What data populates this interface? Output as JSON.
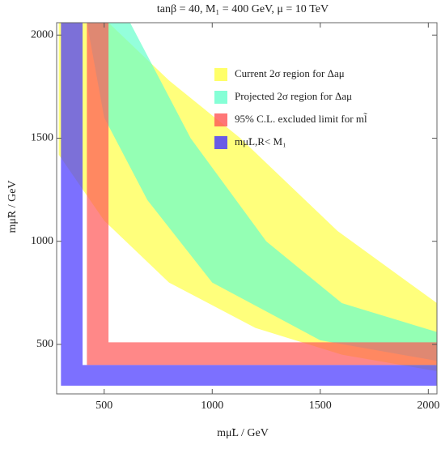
{
  "chart_data": {
    "type": "region",
    "title": "tanβ = 40, M₁ = 400 GeV, μ = 10 TeV",
    "x_label": "mμ̃L / GeV",
    "y_label": "mμ̃R / GeV",
    "xlim": [
      280,
      2040
    ],
    "ylim": [
      260,
      2060
    ],
    "xticks": [
      500,
      1000,
      1500,
      2000
    ],
    "yticks": [
      500,
      1000,
      1500,
      2000
    ],
    "series": [
      {
        "name": "Current 2σ region for Δaμ",
        "color": "#ffff44",
        "x": [
          520,
          800,
          1130,
          1580,
          2040,
          2040,
          1600,
          1200,
          800,
          500,
          290,
          290
        ],
        "y": [
          2060,
          1780,
          1500,
          1050,
          700,
          370,
          450,
          580,
          800,
          1100,
          1420,
          2060
        ]
      },
      {
        "name": "Projected 2σ region for Δaμ",
        "color": "#66ffcc",
        "x": [
          620,
          900,
          1250,
          1600,
          2040,
          2040,
          1500,
          1000,
          700,
          500,
          420
        ],
        "y": [
          2060,
          1500,
          1000,
          700,
          560,
          420,
          520,
          800,
          1200,
          1600,
          2060
        ]
      },
      {
        "name": "95% C.L. excluded limit for ml̃",
        "color": "#ff5555",
        "x": [
          420,
          520,
          520,
          2040,
          2040,
          420
        ],
        "y": [
          2060,
          2060,
          510,
          510,
          400,
          400
        ]
      },
      {
        "name": "mμ̃L,R< M₁",
        "color": "#4433ff",
        "x": [
          300,
          400,
          400,
          2040,
          2040,
          300
        ],
        "y": [
          2060,
          2060,
          400,
          400,
          300,
          300
        ]
      }
    ]
  }
}
